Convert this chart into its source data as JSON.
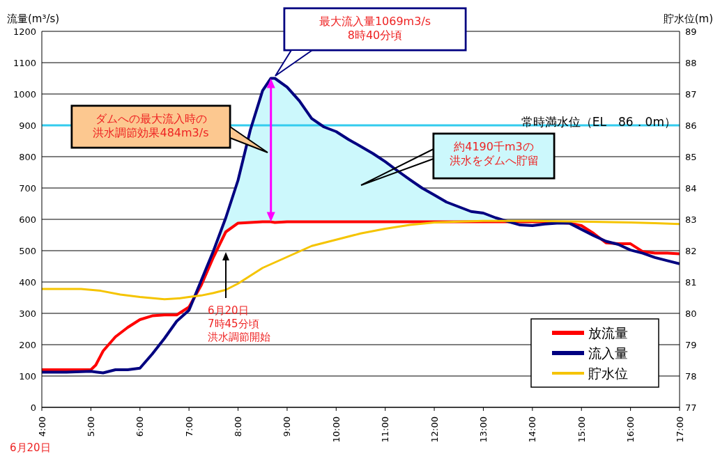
{
  "chart_data": {
    "type": "line",
    "ylabel": "流量(m³/s)",
    "y2label": "貯水位(m)",
    "x": [
      4,
      4.5,
      5,
      5.1,
      5.25,
      5.5,
      5.75,
      6,
      6.25,
      6.5,
      6.75,
      7,
      7.25,
      7.5,
      7.75,
      8,
      8.25,
      8.5,
      8.67,
      8.75,
      9,
      9.25,
      9.5,
      9.75,
      10,
      10.25,
      10.5,
      10.75,
      11,
      11.25,
      11.5,
      11.75,
      12,
      12.25,
      12.5,
      12.75,
      13,
      13.25,
      13.5,
      13.75,
      14,
      14.25,
      14.5,
      14.75,
      15,
      15.25,
      15.5,
      15.75,
      16,
      16.25,
      16.5,
      16.75,
      17
    ],
    "series": [
      {
        "name": "放流量",
        "color": "#ff0000",
        "values": [
          120,
          120,
          120,
          135,
          180,
          225,
          255,
          280,
          292,
          295,
          295,
          320,
          390,
          480,
          560,
          588,
          590,
          592,
          592,
          590,
          592,
          592,
          592,
          592,
          592,
          592,
          592,
          592,
          592,
          592,
          592,
          592,
          592,
          592,
          592,
          592,
          592,
          592,
          592,
          592,
          592,
          592,
          590,
          588,
          580,
          555,
          525,
          522,
          522,
          497,
          492,
          492,
          490
        ]
      },
      {
        "name": "流入量",
        "color": "#000080",
        "values": [
          112,
          112,
          115,
          113,
          110,
          120,
          120,
          125,
          170,
          220,
          275,
          310,
          405,
          500,
          605,
          725,
          885,
          1011,
          1050,
          1050,
          1022,
          978,
          922,
          895,
          880,
          855,
          833,
          810,
          784,
          755,
          727,
          700,
          678,
          655,
          640,
          625,
          620,
          605,
          593,
          582,
          580,
          585,
          588,
          588,
          568,
          548,
          530,
          520,
          502,
          492,
          478,
          468,
          458
        ],
        "lower": [
          null,
          null,
          null,
          null,
          null,
          null,
          null,
          null,
          null,
          null,
          null,
          null,
          null,
          480,
          560,
          588,
          590,
          592,
          592,
          590,
          592,
          592,
          592,
          592,
          592,
          592,
          592,
          592,
          592,
          592,
          592,
          592,
          592,
          592,
          592,
          592,
          592,
          592,
          592,
          null,
          null,
          null,
          null,
          null,
          null,
          null,
          null,
          null,
          null,
          null,
          null,
          null,
          null
        ],
        "upper": [
          null,
          null,
          null,
          null,
          null,
          null,
          null,
          null,
          null,
          null,
          null,
          null,
          null,
          500,
          605,
          725,
          885,
          1011,
          1050,
          1050,
          1022,
          978,
          922,
          895,
          880,
          855,
          833,
          810,
          784,
          755,
          727,
          700,
          678,
          655,
          640,
          625,
          620,
          605,
          593,
          null,
          null,
          null,
          null,
          null,
          null,
          null,
          null,
          null,
          null,
          null,
          null,
          null,
          null
        ]
      },
      {
        "name": "貯水位",
        "color": "#f5c400",
        "axis": "y2",
        "x": [
          4,
          4.8,
          5.2,
          5.6,
          6,
          6.5,
          6.8,
          7,
          7.25,
          7.5,
          7.75,
          8,
          8.25,
          8.5,
          9,
          9.5,
          10,
          10.5,
          11,
          11.5,
          12,
          12.5,
          13,
          14,
          15,
          16,
          16.5,
          17
        ],
        "values": [
          80.78,
          80.78,
          80.72,
          80.6,
          80.52,
          80.45,
          80.48,
          80.52,
          80.57,
          80.65,
          80.75,
          80.95,
          81.2,
          81.45,
          81.8,
          82.15,
          82.35,
          82.55,
          82.7,
          82.82,
          82.9,
          82.93,
          82.95,
          82.95,
          82.93,
          82.9,
          82.88,
          82.85
        ]
      }
    ],
    "xlim": [
      4,
      17
    ],
    "xticks": [
      {
        "value": 4,
        "label": "4:00"
      },
      {
        "value": 5,
        "label": "5:00"
      },
      {
        "value": 6,
        "label": "6:00"
      },
      {
        "value": 7,
        "label": "7:00"
      },
      {
        "value": 8,
        "label": "8:00"
      },
      {
        "value": 9,
        "label": "9:00"
      },
      {
        "value": 10,
        "label": "10:00"
      },
      {
        "value": 11,
        "label": "11:00"
      },
      {
        "value": 12,
        "label": "12:00"
      },
      {
        "value": 13,
        "label": "13:00"
      },
      {
        "value": 14,
        "label": "14:00"
      },
      {
        "value": 15,
        "label": "15:00"
      },
      {
        "value": 16,
        "label": "16:00"
      },
      {
        "value": 17,
        "label": "17:00"
      }
    ],
    "ylim": [
      0,
      1200
    ],
    "yticks": [
      0,
      100,
      200,
      300,
      400,
      500,
      600,
      700,
      800,
      900,
      1000,
      1100,
      1200
    ],
    "y2lim": [
      77,
      89
    ],
    "y2ticks": [
      77,
      78,
      79,
      80,
      81,
      82,
      83,
      84,
      85,
      86,
      87,
      88,
      89
    ],
    "ref_lines": [
      {
        "axis": "y2",
        "value": 86,
        "label": "常時満水位（EL　86．0m）",
        "color": "#33ccee"
      }
    ],
    "annotations": [
      "最大流入量1069m3/s8時40分頃",
      "ダムへの最大流入時の洪水調節効果484m3/s",
      "約4190千m3の洪水をダムへ貯留",
      "6月20日7時45分頃洪水調節開始",
      "6月20日"
    ],
    "grid": "y",
    "legend": "bottom right",
    "marker": "none",
    "line_style": "solid"
  }
}
